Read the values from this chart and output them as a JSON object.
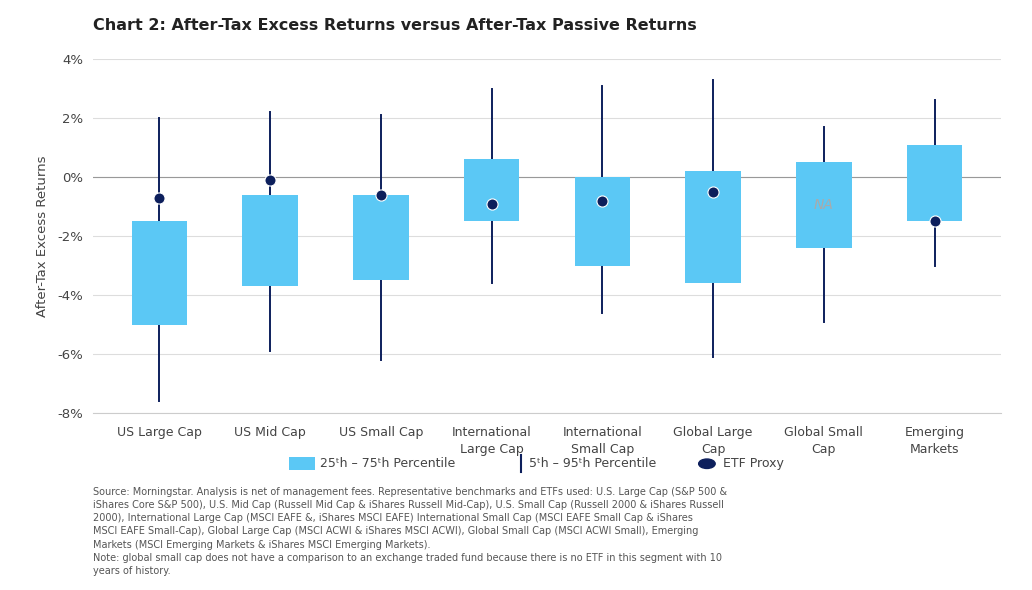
{
  "title": "Chart 2: After-Tax Excess Returns versus After-Tax Passive Returns",
  "ylabel": "After-Tax Excess Returns",
  "box_color": "#5bc8f5",
  "whisker_color": "#0d1f5c",
  "etf_color": "#0d1f5c",
  "zero_line_color": "#999999",
  "grid_color": "#dddddd",
  "categories": [
    "US Large Cap",
    "US Mid Cap",
    "US Small Cap",
    "International\nLarge Cap",
    "International\nSmall Cap",
    "Global Large\nCap",
    "Global Small\nCap",
    "Emerging\nMarkets"
  ],
  "ylim": [
    -8,
    4
  ],
  "yticks": [
    -8,
    -6,
    -4,
    -2,
    0,
    2,
    4
  ],
  "ytick_labels": [
    "-8%",
    "-6%",
    "-4%",
    "-2%",
    "0%",
    "2%",
    "4%"
  ],
  "boxes": [
    {
      "q25": -5.0,
      "q75": -1.5,
      "p5": -7.6,
      "p95": 2.0,
      "etf": -0.7
    },
    {
      "q25": -3.7,
      "q75": -0.6,
      "p5": -5.9,
      "p95": 2.2,
      "etf": -0.1
    },
    {
      "q25": -3.5,
      "q75": -0.6,
      "p5": -6.2,
      "p95": 2.1,
      "etf": -0.6
    },
    {
      "q25": -1.5,
      "q75": 0.6,
      "p5": -3.6,
      "p95": 3.0,
      "etf": -0.9
    },
    {
      "q25": -3.0,
      "q75": 0.0,
      "p5": -4.6,
      "p95": 3.1,
      "etf": -0.8
    },
    {
      "q25": -3.6,
      "q75": 0.2,
      "p5": -6.1,
      "p95": 3.3,
      "etf": -0.5
    },
    {
      "q25": -2.4,
      "q75": 0.5,
      "p5": -4.9,
      "p95": 1.7,
      "etf": null
    },
    {
      "q25": -1.5,
      "q75": 1.1,
      "p5": -3.0,
      "p95": 2.6,
      "etf": -1.5
    }
  ],
  "legend_box_label": "25ᵗh – 75ᵗh Percentile",
  "legend_whisker_label": "5ᵗh – 95ᵗh Percentile",
  "legend_etf_label": "ETF Proxy",
  "source_text": "Source: Morningstar. Analysis is net of management fees. Representative benchmarks and ETFs used: U.S. Large Cap (S&P 500 &\niShares Core S&P 500), U.S. Mid Cap (Russell Mid Cap & iShares Russell Mid-Cap), U.S. Small Cap (Russell 2000 & iShares Russell\n2000), International Large Cap (MSCI EAFE &, iShares MSCI EAFE) International Small Cap (MSCI EAFE Small Cap & iShares\nMSCI EAFE Small-Cap), Global Large Cap (MSCI ACWI & iShares MSCI ACWI), Global Small Cap (MSCI ACWI Small), Emerging\nMarkets (MSCI Emerging Markets & iShares MSCI Emerging Markets).\nNote: global small cap does not have a comparison to an exchange traded fund because there is no ETF in this segment with 10\nyears of history."
}
